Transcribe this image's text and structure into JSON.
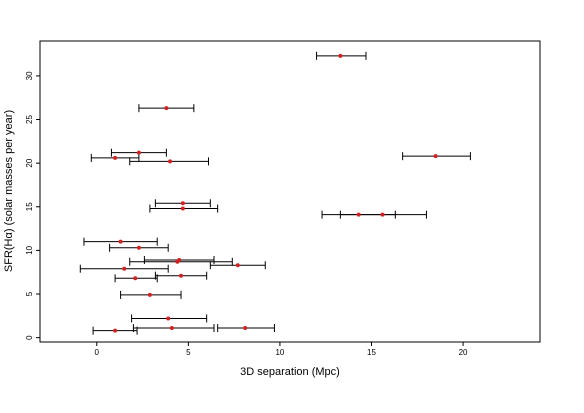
{
  "chart_data": {
    "type": "scatter",
    "title": "",
    "xlabel": "3D separation (Mpc)",
    "ylabel": "SFR(Hα) (solar masses per year)",
    "xlim": [
      -3.1,
      24.2
    ],
    "ylim": [
      -0.5,
      34.0
    ],
    "xticks": [
      0,
      5,
      10,
      15,
      20
    ],
    "yticks": [
      0,
      5,
      10,
      15,
      20,
      25,
      30
    ],
    "grid": false,
    "legend": "none",
    "point_color": "#d42020",
    "errorbar_color": "#000000",
    "points": [
      {
        "x": 13.3,
        "y": 32.3,
        "xmin": 12.0,
        "xmax": 14.7
      },
      {
        "x": 3.8,
        "y": 26.3,
        "xmin": 2.3,
        "xmax": 5.3
      },
      {
        "x": 2.3,
        "y": 21.2,
        "xmin": 0.8,
        "xmax": 3.8
      },
      {
        "x": 1.0,
        "y": 20.6,
        "xmin": -0.3,
        "xmax": 2.3
      },
      {
        "x": 4.0,
        "y": 20.2,
        "xmin": 1.8,
        "xmax": 6.1
      },
      {
        "x": 18.5,
        "y": 20.8,
        "xmin": 16.7,
        "xmax": 20.4
      },
      {
        "x": 4.7,
        "y": 15.4,
        "xmin": 3.2,
        "xmax": 6.2
      },
      {
        "x": 4.7,
        "y": 14.8,
        "xmin": 2.9,
        "xmax": 6.6
      },
      {
        "x": 14.3,
        "y": 14.1,
        "xmin": 12.3,
        "xmax": 16.3
      },
      {
        "x": 15.6,
        "y": 14.1,
        "xmin": 13.3,
        "xmax": 18.0
      },
      {
        "x": 1.3,
        "y": 11.0,
        "xmin": -0.7,
        "xmax": 3.3
      },
      {
        "x": 2.3,
        "y": 10.3,
        "xmin": 0.7,
        "xmax": 3.9
      },
      {
        "x": 4.5,
        "y": 8.9,
        "xmin": 2.6,
        "xmax": 6.4
      },
      {
        "x": 4.4,
        "y": 8.7,
        "xmin": 1.8,
        "xmax": 7.4
      },
      {
        "x": 7.7,
        "y": 8.3,
        "xmin": 6.2,
        "xmax": 9.2
      },
      {
        "x": 1.5,
        "y": 7.9,
        "xmin": -0.9,
        "xmax": 3.9
      },
      {
        "x": 4.6,
        "y": 7.1,
        "xmin": 3.2,
        "xmax": 6.0
      },
      {
        "x": 2.1,
        "y": 6.8,
        "xmin": 1.0,
        "xmax": 3.3
      },
      {
        "x": 2.9,
        "y": 4.9,
        "xmin": 1.3,
        "xmax": 4.6
      },
      {
        "x": 3.9,
        "y": 2.2,
        "xmin": 1.9,
        "xmax": 6.0
      },
      {
        "x": 4.1,
        "y": 1.1,
        "xmin": 2.0,
        "xmax": 6.4
      },
      {
        "x": 8.1,
        "y": 1.1,
        "xmin": 6.6,
        "xmax": 9.7
      },
      {
        "x": 1.0,
        "y": 0.8,
        "xmin": -0.2,
        "xmax": 2.2
      }
    ]
  }
}
